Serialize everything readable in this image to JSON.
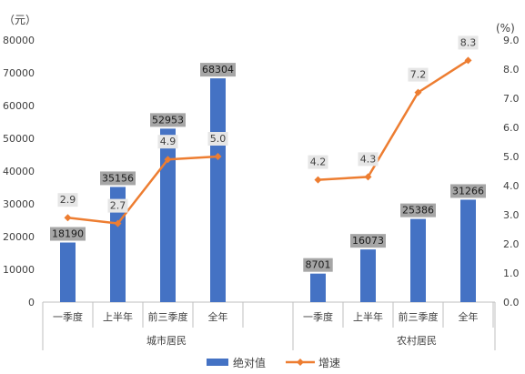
{
  "chart_data": {
    "type": "bar",
    "combo": "bar+line",
    "left_axis": {
      "unit": "（元）",
      "ylim": [
        0,
        80000
      ],
      "ticks": [
        "0",
        "10000",
        "20000",
        "30000",
        "40000",
        "50000",
        "60000",
        "70000",
        "80000"
      ]
    },
    "right_axis": {
      "unit": "(%)",
      "ylim": [
        0,
        9
      ],
      "ticks": [
        "0.0",
        "1.0",
        "2.0",
        "3.0",
        "4.0",
        "5.0",
        "6.0",
        "7.0",
        "8.0",
        "9.0"
      ]
    },
    "groups": [
      {
        "name": "城市居民",
        "categories": [
          "一季度",
          "上半年",
          "前三季度",
          "全年"
        ],
        "values": [
          18190,
          35156,
          52953,
          68304
        ],
        "growth": [
          2.9,
          2.7,
          4.9,
          5.0
        ]
      },
      {
        "name": "农村居民",
        "categories": [
          "一季度",
          "上半年",
          "前三季度",
          "全年"
        ],
        "values": [
          8701,
          16073,
          25386,
          31266
        ],
        "growth": [
          4.2,
          4.3,
          7.2,
          8.3
        ]
      }
    ],
    "series": [
      {
        "name": "绝对值",
        "kind": "bar",
        "color": "#4472c4"
      },
      {
        "name": "增速",
        "kind": "line",
        "color": "#ed7d31"
      }
    ],
    "grid": false,
    "legend": "bottom"
  }
}
